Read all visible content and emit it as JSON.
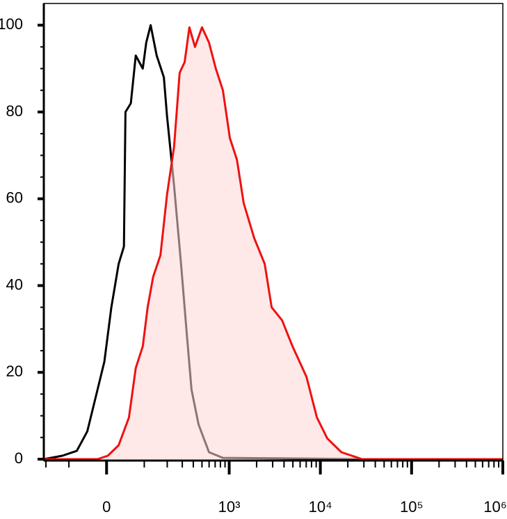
{
  "chart_data": {
    "type": "histogram-overlay",
    "xscale": "asinh",
    "xlim": [
      -212,
      1000000
    ],
    "xticks": [
      {
        "value": 0,
        "label": "0"
      },
      {
        "value": 1000,
        "label": "10³"
      },
      {
        "value": 10000,
        "label": "10⁴"
      },
      {
        "value": 100000,
        "label": "10⁵"
      },
      {
        "value": 1000000,
        "label": "10⁶"
      }
    ],
    "xminorticks": [
      -200,
      -100,
      100,
      200,
      300,
      400,
      500,
      600,
      700,
      800,
      900,
      2000,
      3000,
      4000,
      5000,
      6000,
      7000,
      8000,
      9000,
      20000,
      30000,
      40000,
      50000,
      60000,
      70000,
      80000,
      90000,
      200000,
      300000,
      400000,
      500000,
      600000,
      700000,
      800000,
      900000
    ],
    "ylim": [
      0,
      105
    ],
    "yticks": [
      0,
      20,
      40,
      60,
      80,
      100
    ],
    "yminorticks": [
      5,
      10,
      15,
      25,
      30,
      35,
      45,
      50,
      55,
      65,
      70,
      75,
      85,
      90,
      95
    ],
    "series": [
      {
        "color": "#000000",
        "x": [
          -212,
          -123,
          -75,
          -46,
          -21,
          -5,
          11,
          28,
          41,
          45,
          59,
          73,
          95,
          107,
          123,
          148,
          182,
          199,
          241,
          290,
          337,
          382,
          458,
          598,
          853,
          3490,
          28700
        ],
        "values": [
          0,
          0.8,
          1.9,
          6.4,
          16,
          22.5,
          35,
          45,
          49,
          80,
          82,
          93,
          90,
          96,
          100,
          93,
          88,
          79,
          63,
          45,
          29,
          16,
          8,
          1.6,
          0.3,
          0.2,
          0
        ]
      },
      {
        "color": "#ee1111",
        "fill": "#ffd6d6",
        "x": [
          -212,
          -21,
          3,
          28,
          54,
          73,
          95,
          112,
          133,
          165,
          199,
          241,
          280,
          319,
          361,
          418,
          500,
          598,
          712,
          853,
          1017,
          1216,
          1444,
          1880,
          2452,
          2923,
          3805,
          4950,
          7037,
          9170,
          11900,
          17000,
          28700,
          1000000
        ],
        "values": [
          0,
          0,
          0.8,
          3.2,
          9.6,
          21,
          26,
          35,
          42,
          47,
          61,
          72,
          89,
          91.5,
          99.5,
          95,
          99.5,
          96,
          90,
          85,
          74,
          69,
          59,
          51,
          45,
          35,
          32,
          26,
          19,
          9.6,
          4.8,
          1.6,
          0,
          0
        ]
      }
    ]
  }
}
